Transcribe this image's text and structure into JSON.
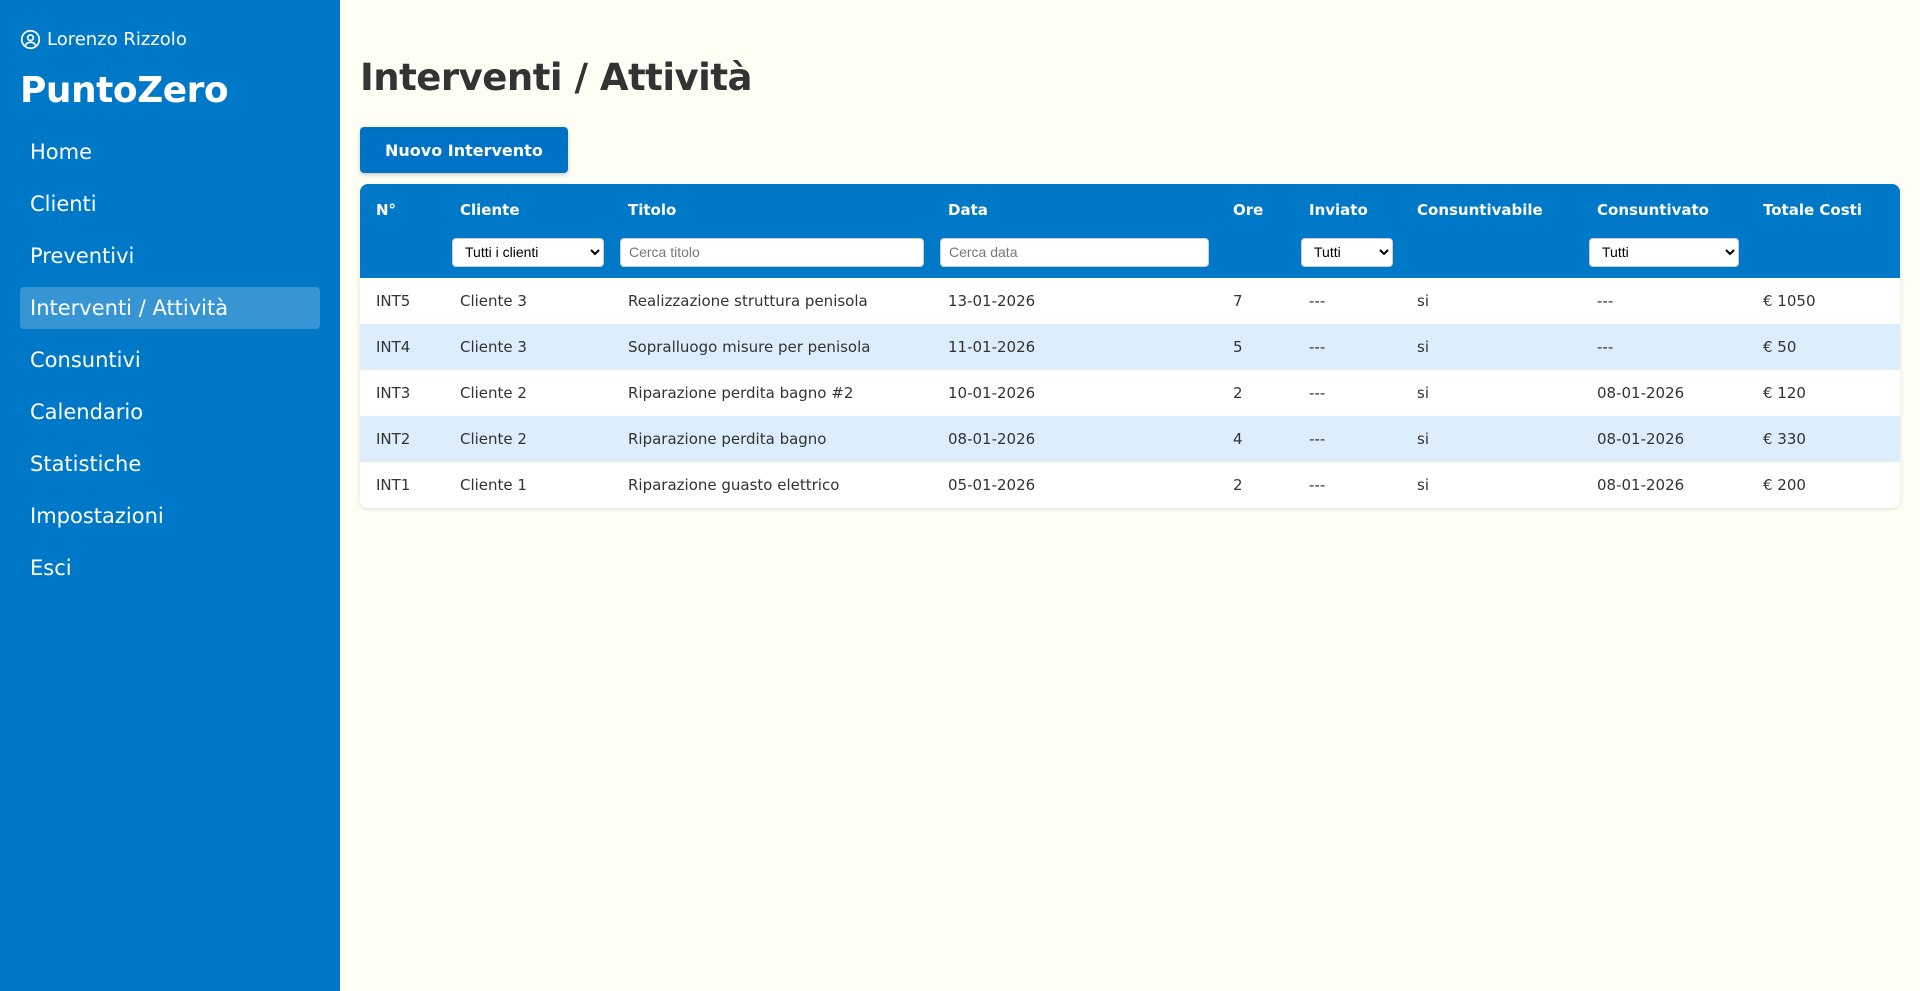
{
  "sidebar": {
    "user_name": "Lorenzo Rizzolo",
    "brand": "PuntoZero",
    "items": [
      {
        "label": "Home"
      },
      {
        "label": "Clienti"
      },
      {
        "label": "Preventivi"
      },
      {
        "label": "Interventi / Attività"
      },
      {
        "label": "Consuntivi"
      },
      {
        "label": "Calendario"
      },
      {
        "label": "Statistiche"
      },
      {
        "label": "Impostazioni"
      },
      {
        "label": "Esci"
      }
    ]
  },
  "main": {
    "title": "Interventi / Attività",
    "new_button": "Nuovo Intervento"
  },
  "table": {
    "headers": [
      "N°",
      "Cliente",
      "Titolo",
      "Data",
      "Ore",
      "Inviato",
      "Consuntivabile",
      "Consuntivato",
      "Totale Costi"
    ],
    "filters": {
      "cliente_selected": "Tutti i clienti",
      "titolo_placeholder": "Cerca titolo",
      "data_placeholder": "Cerca data",
      "inviato_selected": "Tutti",
      "consuntivato_selected": "Tutti"
    },
    "rows": [
      [
        "INT5",
        "Cliente 3",
        "Realizzazione struttura penisola",
        "13-01-2026",
        "7",
        "---",
        "si",
        "---",
        "€ 1050"
      ],
      [
        "INT4",
        "Cliente 3",
        "Sopralluogo misure per penisola",
        "11-01-2026",
        "5",
        "---",
        "si",
        "---",
        "€ 50"
      ],
      [
        "INT3",
        "Cliente 2",
        "Riparazione perdita bagno #2",
        "10-01-2026",
        "2",
        "---",
        "si",
        "08-01-2026",
        "€ 120"
      ],
      [
        "INT2",
        "Cliente 2",
        "Riparazione perdita bagno",
        "08-01-2026",
        "4",
        "---",
        "si",
        "08-01-2026",
        "€ 330"
      ],
      [
        "INT1",
        "Cliente 1",
        "Riparazione guasto elettrico",
        "05-01-2026",
        "2",
        "---",
        "si",
        "08-01-2026",
        "€ 200"
      ]
    ]
  },
  "colors": {
    "sidebar": "#0078c8",
    "header": "#0078c8",
    "row_alt": "#dcedfb",
    "page_bg": "#fefef5"
  },
  "active_nav_index": 3
}
